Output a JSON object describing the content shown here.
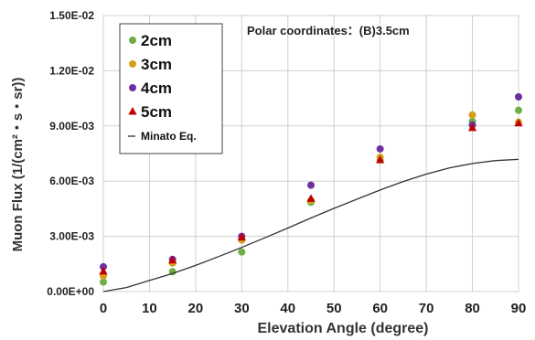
{
  "chart_data": {
    "type": "scatter",
    "annotation": "Polar coordinates：(B)3.5cm",
    "xlabel": "Elevation Angle (degree)",
    "ylabel": "Muon Flux (1/(cm²・s・sr))",
    "xlim": [
      0,
      90
    ],
    "ylim": [
      0,
      0.015
    ],
    "xticks": [
      "0",
      "10",
      "20",
      "30",
      "40",
      "50",
      "60",
      "70",
      "80",
      "90"
    ],
    "yticks": [
      "0.00E+00",
      "3.00E-03",
      "6.00E-03",
      "9.00E-03",
      "1.20E-02",
      "1.50E-02"
    ],
    "grid": true,
    "legend_position": "top-left",
    "series": [
      {
        "name": "2cm",
        "marker": "circle",
        "color": "#70ad47",
        "x": [
          0,
          15,
          30,
          45,
          60,
          80,
          90
        ],
        "y": [
          0.00052,
          0.00108,
          0.00215,
          0.00485,
          0.00715,
          0.00925,
          0.00985
        ]
      },
      {
        "name": "3cm",
        "marker": "circle",
        "color": "#d4a017",
        "x": [
          0,
          15,
          30,
          45,
          60,
          80,
          90
        ],
        "y": [
          0.00085,
          0.00155,
          0.0028,
          0.00495,
          0.0073,
          0.0096,
          0.0092
        ]
      },
      {
        "name": "4cm",
        "marker": "circle",
        "color": "#7030a0",
        "x": [
          0,
          15,
          30,
          45,
          60,
          80,
          90
        ],
        "y": [
          0.00135,
          0.00175,
          0.003,
          0.00578,
          0.00775,
          0.00905,
          0.01058
        ]
      },
      {
        "name": "5cm",
        "marker": "triangle",
        "color": "#c00000",
        "x": [
          0,
          15,
          30,
          45,
          60,
          80,
          90
        ],
        "y": [
          0.0011,
          0.0017,
          0.00295,
          0.00505,
          0.00715,
          0.0089,
          0.00915
        ]
      },
      {
        "name": "Minato Eq.",
        "marker": "line",
        "color": "#333333",
        "x": [
          0,
          5,
          10,
          15,
          20,
          25,
          30,
          35,
          40,
          45,
          50,
          55,
          60,
          65,
          70,
          75,
          80,
          85,
          90
        ],
        "y": [
          0.0,
          0.00022,
          0.0006,
          0.00098,
          0.00142,
          0.0019,
          0.0024,
          0.00292,
          0.00345,
          0.004,
          0.00452,
          0.00502,
          0.00552,
          0.00598,
          0.00638,
          0.00672,
          0.00696,
          0.00712,
          0.00718
        ]
      }
    ]
  }
}
